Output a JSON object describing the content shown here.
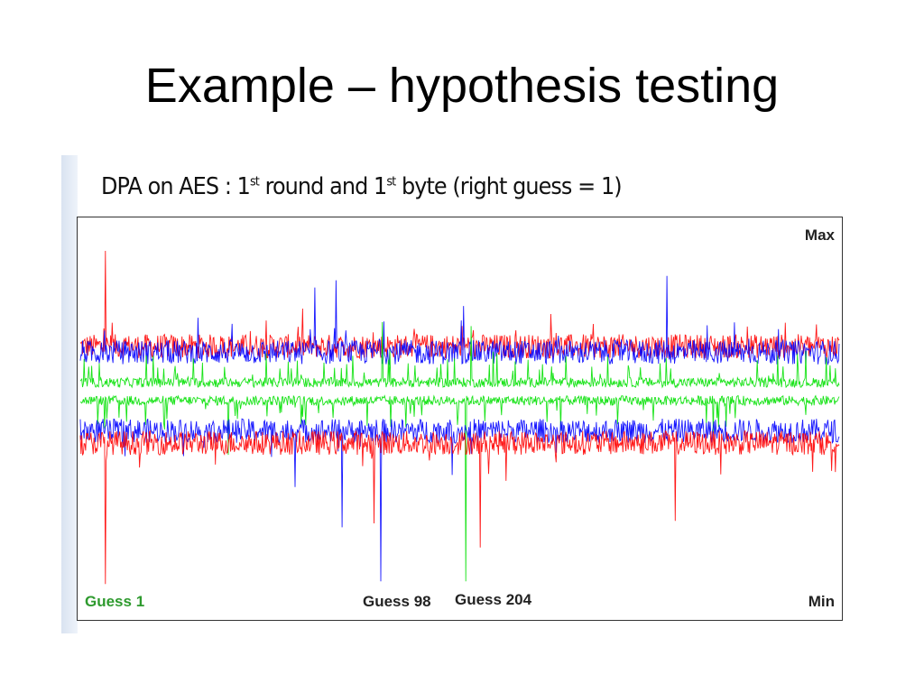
{
  "slide": {
    "title": "Example – hypothesis testing"
  },
  "chart_data": {
    "type": "line",
    "title": {
      "prefix": "DPA on AES : 1",
      "sup1": "st",
      "mid": " round and 1",
      "sup2": "st",
      "suffix": " byte (right guess = 1)"
    },
    "y_labels": {
      "max": "Max",
      "min": "Min"
    },
    "ylim": [
      0,
      1
    ],
    "xlim": [
      0,
      1000
    ],
    "annotations": [
      {
        "text": "Guess 1",
        "color": "#2e9a2e"
      },
      {
        "text": "Guess 98",
        "color": "#222222"
      },
      {
        "text": "Guess 204",
        "color": "#222222"
      }
    ],
    "series": [
      {
        "color": "#ff0000",
        "band": "upper",
        "baseline": 0.68,
        "spikes": [
          [
            33,
            0.917
          ],
          [
            620,
            0.76
          ]
        ]
      },
      {
        "color": "#0000ff",
        "band": "upper",
        "baseline": 0.665,
        "spikes": [
          [
            309,
            0.826
          ],
          [
            337,
            0.844
          ],
          [
            773,
            0.855
          ],
          [
            505,
            0.78
          ]
        ]
      },
      {
        "color": "#00e000",
        "band": "upper",
        "baseline": 0.59,
        "spikes": [
          [
            398,
            0.74
          ],
          [
            515,
            0.73
          ]
        ]
      },
      {
        "color": "#00e000",
        "band": "lower",
        "baseline": 0.545,
        "spikes": [
          [
            508,
            0.096
          ],
          [
            195,
            0.41
          ]
        ]
      },
      {
        "color": "#0000ff",
        "band": "lower",
        "baseline": 0.47,
        "spikes": [
          [
            396,
            0.096
          ],
          [
            283,
            0.33
          ],
          [
            345,
            0.23
          ],
          [
            490,
            0.36
          ]
        ]
      },
      {
        "color": "#ff0000",
        "band": "lower",
        "baseline": 0.44,
        "spikes": [
          [
            33,
            0.089
          ],
          [
            784,
            0.246
          ],
          [
            527,
            0.18
          ],
          [
            387,
            0.24
          ]
        ]
      }
    ]
  }
}
